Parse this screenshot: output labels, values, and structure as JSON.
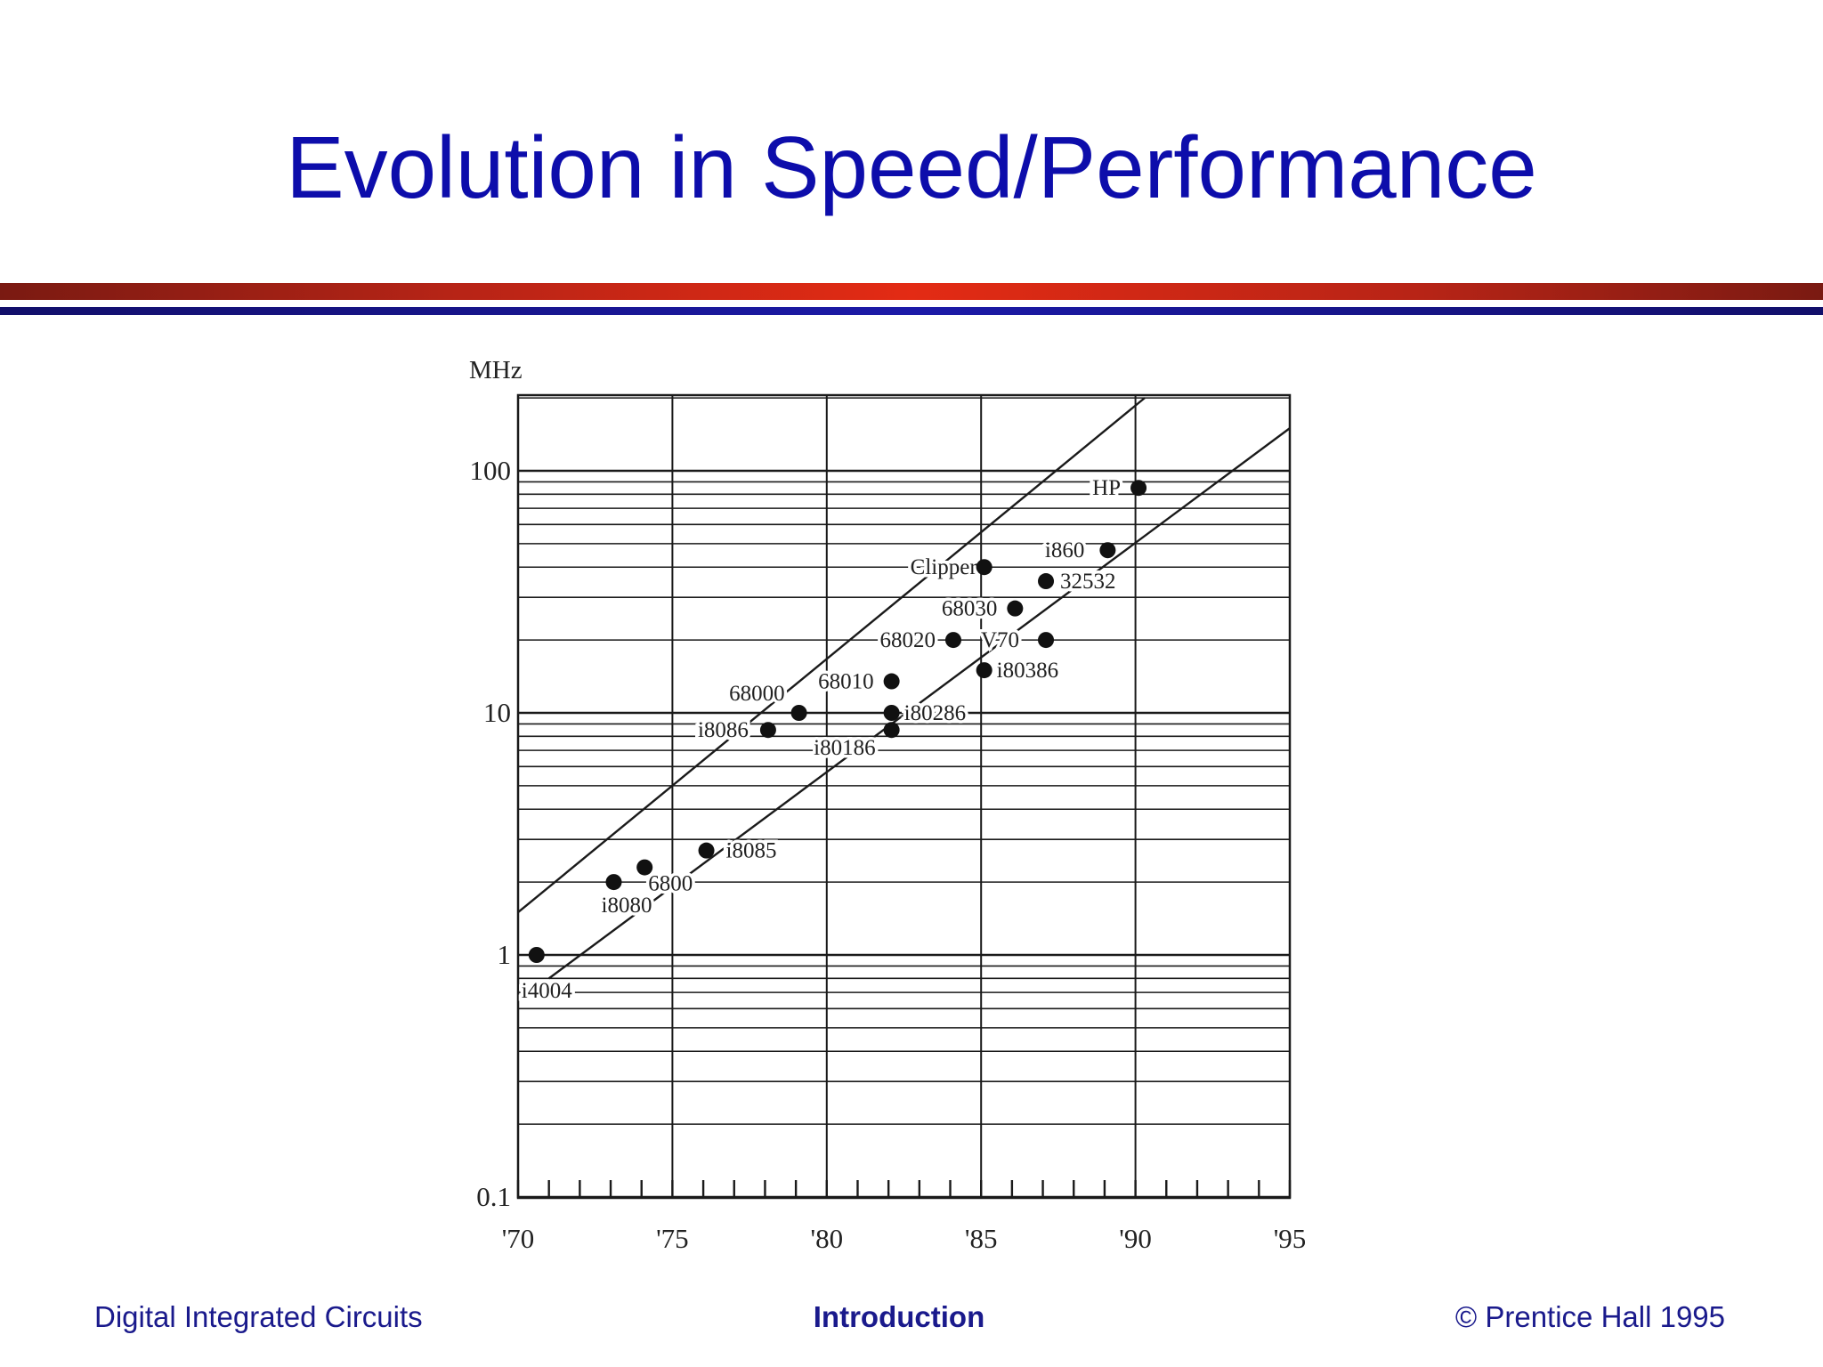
{
  "slide": {
    "title": "Evolution in Speed/Performance",
    "footer_left": "Digital Integrated Circuits",
    "footer_center": "Introduction",
    "footer_right": "© Prentice Hall 1995"
  },
  "colors": {
    "title": "#0d0dab",
    "rule_red": "#c62818",
    "rule_blue": "#1c1aa8",
    "chart_ink": "#1a1a1a"
  },
  "chart_data": {
    "type": "scatter",
    "title": "",
    "xlabel": "",
    "ylabel": "MHz",
    "y_scale": "log",
    "xlim": [
      1970,
      1995
    ],
    "ylim": [
      0.1,
      200
    ],
    "x_ticks": [
      1970,
      1975,
      1980,
      1985,
      1990,
      1995
    ],
    "x_tick_labels": [
      "'70",
      "'75",
      "'80",
      "'85",
      "'90",
      "'95"
    ],
    "y_ticks": [
      0.1,
      1,
      10,
      100
    ],
    "y_tick_labels": [
      "0.1",
      "1",
      "10",
      "100"
    ],
    "grid": true,
    "points": [
      {
        "label": "i4004",
        "x": 1970.6,
        "y": 1
      },
      {
        "label": "i8080",
        "x": 1973.1,
        "y": 2.0
      },
      {
        "label": "6800",
        "x": 1974.1,
        "y": 2.3
      },
      {
        "label": "i8085",
        "x": 1976.1,
        "y": 2.7
      },
      {
        "label": "i8086",
        "x": 1978.1,
        "y": 8.5
      },
      {
        "label": "68000",
        "x": 1979.1,
        "y": 10
      },
      {
        "label": "68010",
        "x": 1982.1,
        "y": 13.5
      },
      {
        "label": "i80186",
        "x": 1982.1,
        "y": 8.5
      },
      {
        "label": "i80286",
        "x": 1982.1,
        "y": 10
      },
      {
        "label": "68020",
        "x": 1984.1,
        "y": 20
      },
      {
        "label": "68030",
        "x": 1986.1,
        "y": 27
      },
      {
        "label": "i80386",
        "x": 1985.1,
        "y": 15
      },
      {
        "label": "V70",
        "x": 1987.1,
        "y": 20
      },
      {
        "label": "Clipper",
        "x": 1985.1,
        "y": 40
      },
      {
        "label": "32532",
        "x": 1987.1,
        "y": 35
      },
      {
        "label": "i860",
        "x": 1989.1,
        "y": 47
      },
      {
        "label": "HP",
        "x": 1990.1,
        "y": 85
      }
    ],
    "trend_lines": [
      {
        "x": [
          1970,
          1990.3
        ],
        "y": [
          1.5,
          200
        ]
      },
      {
        "x": [
          1971,
          1995
        ],
        "y": [
          0.8,
          150
        ]
      }
    ]
  }
}
